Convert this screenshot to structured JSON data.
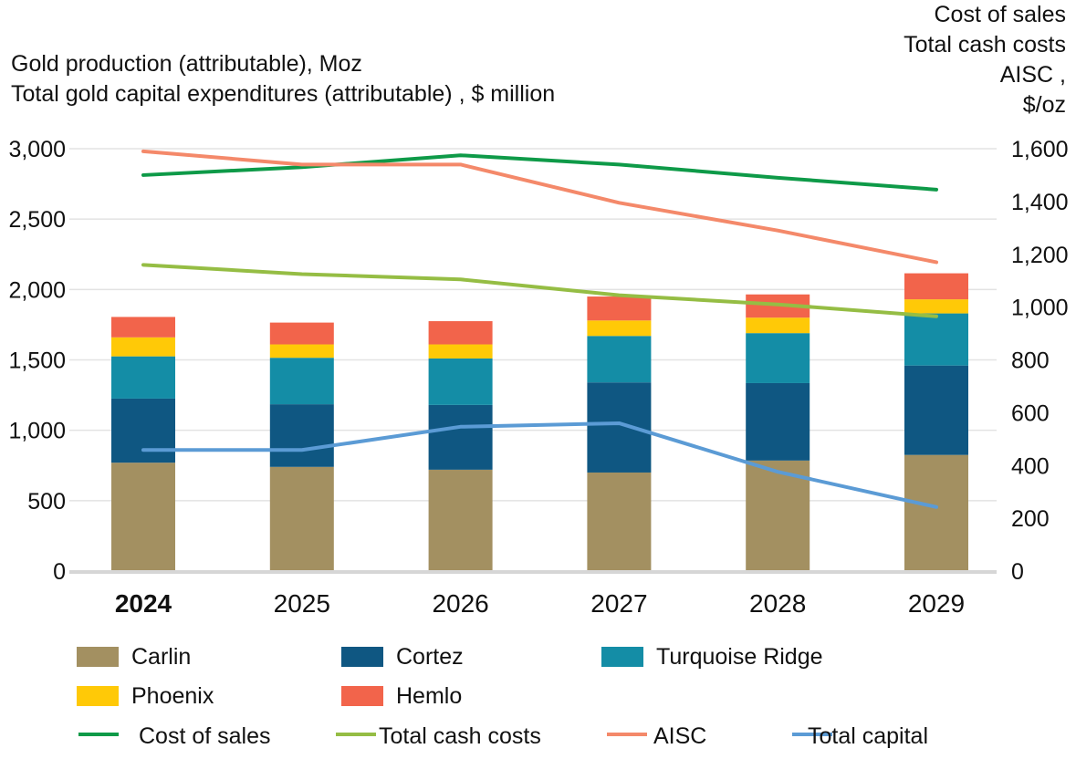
{
  "chart_data": {
    "type": "bar",
    "stacked": true,
    "left_axis_title": [
      "Gold production (attributable), Moz",
      "Total gold capital expenditures (attributable) , $ million"
    ],
    "right_axis_title": [
      "Cost of sales",
      "Total cash costs",
      "AISC ,",
      "$/oz"
    ],
    "categories": [
      "2024",
      "2025",
      "2026",
      "2027",
      "2028",
      "2029"
    ],
    "bold_category": "2024",
    "ylim_left": [
      0,
      3000
    ],
    "yticks_left": [
      "0",
      "500",
      "1,000",
      "1,500",
      "2,000",
      "2,500",
      "3,000"
    ],
    "ylim_right": [
      0,
      1600
    ],
    "yticks_right": [
      "0",
      "200",
      "400",
      "600",
      "800",
      "1,000",
      "1,200",
      "1,400",
      "1,600"
    ],
    "grid": true,
    "legend_placement": "bottom",
    "bar_series": [
      {
        "name": "Carlin",
        "color": "#a39061",
        "values": [
          770,
          740,
          720,
          700,
          785,
          825
        ]
      },
      {
        "name": "Cortez",
        "color": "#0f5782",
        "values": [
          455,
          445,
          460,
          640,
          550,
          635
        ]
      },
      {
        "name": "Turquoise Ridge",
        "color": "#148da6",
        "values": [
          300,
          330,
          330,
          330,
          355,
          370
        ]
      },
      {
        "name": "Phoenix",
        "color": "#ffc907",
        "values": [
          135,
          95,
          100,
          110,
          110,
          100
        ]
      },
      {
        "name": "Hemlo",
        "color": "#f2644b",
        "values": [
          145,
          155,
          165,
          170,
          165,
          185
        ]
      }
    ],
    "line_series": [
      {
        "name": "Cost of sales",
        "axis": "right",
        "color": "#0e9a48",
        "values": [
          1500,
          1530,
          1575,
          1540,
          1490,
          1445
        ]
      },
      {
        "name": "Total cash costs",
        "axis": "right",
        "color": "#95bd44",
        "values": [
          1160,
          1125,
          1105,
          1045,
          1010,
          965
        ]
      },
      {
        "name": "AISC",
        "axis": "right",
        "color": "#f4896a",
        "values": [
          1590,
          1540,
          1540,
          1395,
          1290,
          1170
        ]
      },
      {
        "name": "Total capital",
        "axis": "left",
        "color": "#5b9bd5",
        "values": [
          860,
          860,
          1025,
          1050,
          705,
          455
        ]
      }
    ]
  }
}
